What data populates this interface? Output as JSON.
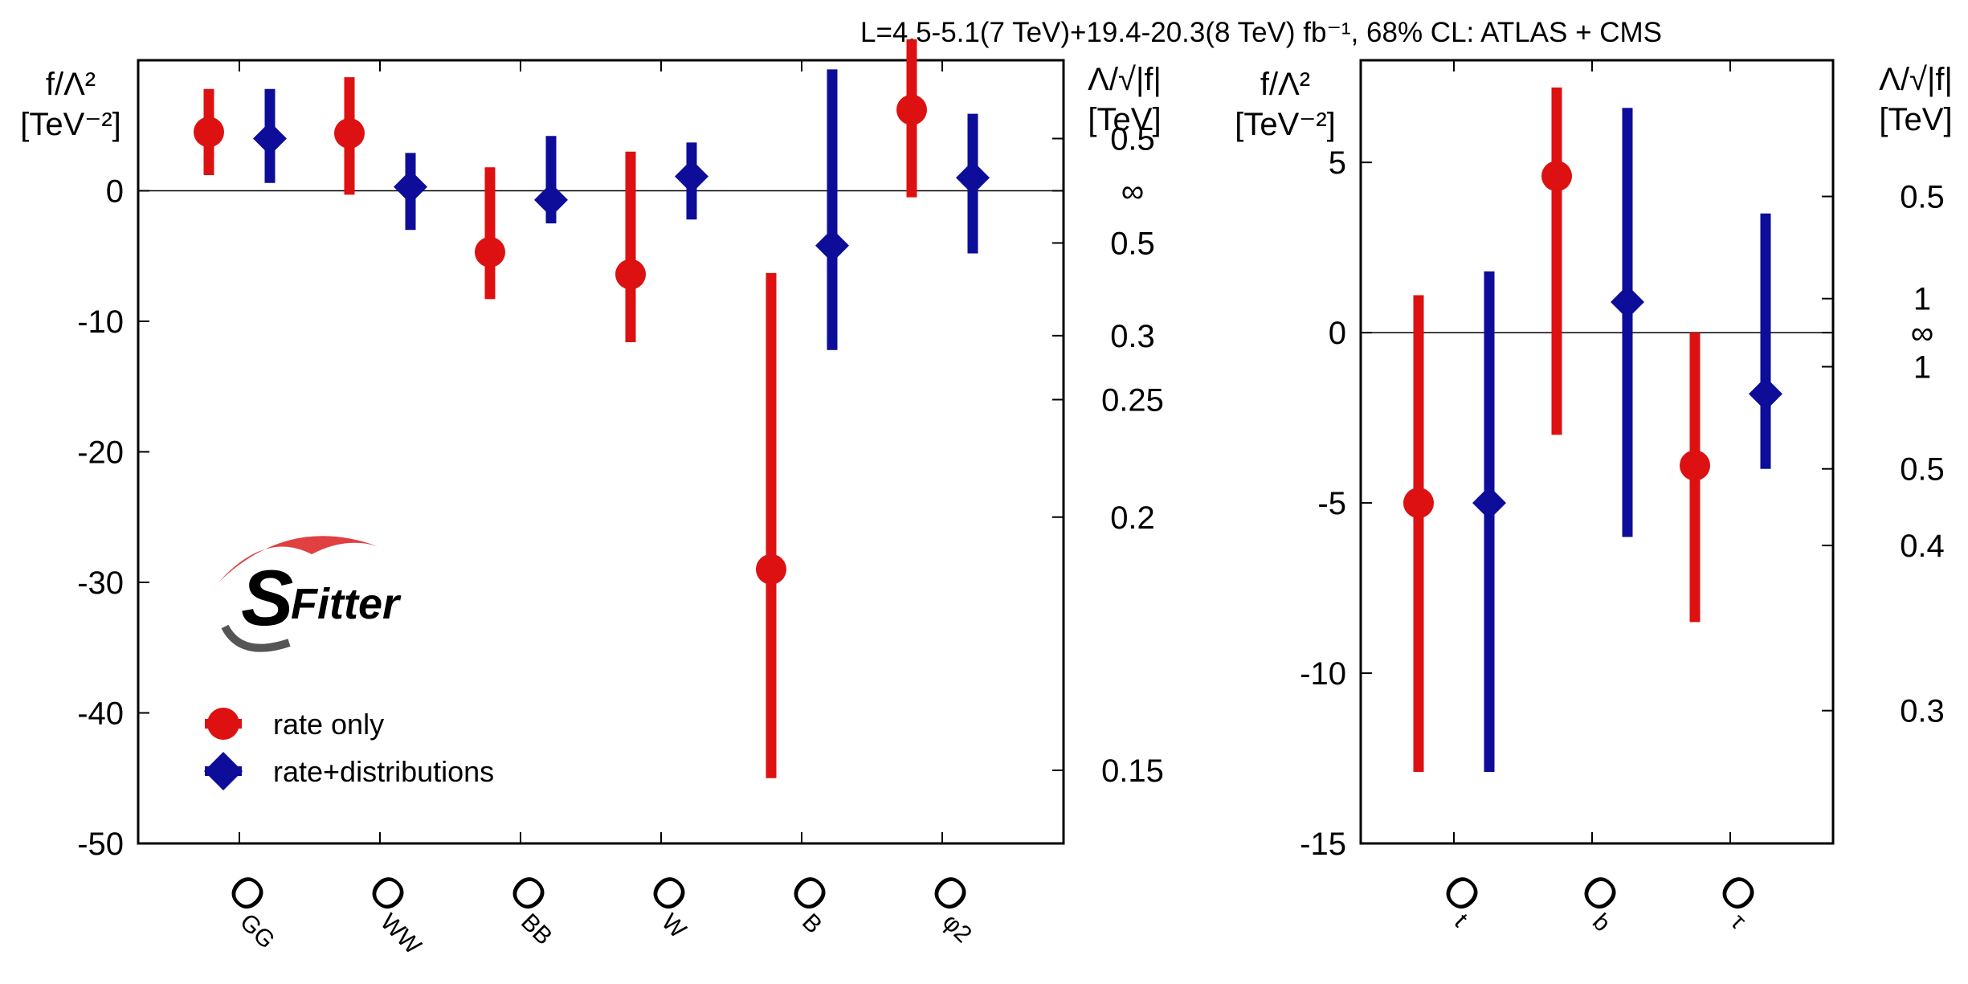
{
  "title": "L=4.5-5.1(7 TeV)+19.4-20.3(8 TeV) fb⁻¹, 68% CL: ATLAS + CMS",
  "colors": {
    "rate_only": "#dd1111",
    "rate_dist": "#0d0d9a",
    "logo_blue": "#6680f0",
    "logo_grey": "#555555",
    "logo_red": "#e04040"
  },
  "left_axis": {
    "line1": "f/Λ²",
    "line2": "[TeV⁻²]"
  },
  "right_axis": {
    "line1": "Λ/√|f|",
    "line2": "[TeV]"
  },
  "logo": {
    "s": "S",
    "rest": "Fitter"
  },
  "legend": [
    {
      "label": "rate only",
      "marker": "circle"
    },
    {
      "label": "rate+distributions",
      "marker": "diamond"
    }
  ],
  "chart_data": [
    {
      "type": "errorbar",
      "title": "L=4.5-5.1(7 TeV)+19.4-20.3(8 TeV) fb⁻¹, 68% CL: ATLAS + CMS",
      "ylabel": "f/Λ² [TeV⁻²]",
      "y2label": "Λ/√|f| [TeV]",
      "ylim": [
        -50,
        10
      ],
      "yticks": [
        0,
        -10,
        -20,
        -30,
        -40,
        -50
      ],
      "y2ticks": [
        {
          "f": 4.0,
          "label": "0.5"
        },
        {
          "f": 0,
          "label": "∞"
        },
        {
          "f": -4.0,
          "label": "0.5"
        },
        {
          "f": -11.1,
          "label": "0.3"
        },
        {
          "f": -16.0,
          "label": "0.25"
        },
        {
          "f": -25.0,
          "label": "0.2"
        },
        {
          "f": -44.4,
          "label": "0.15"
        }
      ],
      "categories": [
        {
          "op": "O",
          "sub": "GG"
        },
        {
          "op": "O",
          "sub": "WW"
        },
        {
          "op": "O",
          "sub": "BB"
        },
        {
          "op": "O",
          "sub": "W"
        },
        {
          "op": "O",
          "sub": "B"
        },
        {
          "op": "O",
          "sub": "φ2"
        }
      ],
      "series": [
        {
          "name": "rate only",
          "values": [
            4.5,
            4.4,
            -4.7,
            -6.4,
            -29.0,
            6.2
          ],
          "lo": [
            1.2,
            -0.3,
            -8.3,
            -11.6,
            -45.0,
            -0.5
          ],
          "hi": [
            7.8,
            8.7,
            1.8,
            3.0,
            -6.3,
            11.6
          ]
        },
        {
          "name": "rate+distributions",
          "values": [
            4.0,
            0.3,
            -0.7,
            1.1,
            -4.2,
            1.0
          ],
          "lo": [
            0.6,
            -3.0,
            -2.5,
            -2.2,
            -12.2,
            -4.8
          ],
          "hi": [
            7.8,
            2.9,
            4.2,
            3.7,
            9.3,
            5.9
          ]
        }
      ]
    },
    {
      "type": "errorbar",
      "ylabel": "f/Λ² [TeV⁻²]",
      "y2label": "Λ/√|f| [TeV]",
      "ylim": [
        -15,
        8
      ],
      "yticks": [
        5,
        0,
        -5,
        -10,
        -15
      ],
      "y2ticks": [
        {
          "f": 4.0,
          "label": "0.5"
        },
        {
          "f": 1.0,
          "label": "1"
        },
        {
          "f": 0,
          "label": "∞"
        },
        {
          "f": -1.0,
          "label": "1"
        },
        {
          "f": -4.0,
          "label": "0.5"
        },
        {
          "f": -6.25,
          "label": "0.4"
        },
        {
          "f": -11.1,
          "label": "0.3"
        }
      ],
      "categories": [
        {
          "op": "O",
          "sub": "t"
        },
        {
          "op": "O",
          "sub": "b"
        },
        {
          "op": "O",
          "sub": "τ"
        }
      ],
      "series": [
        {
          "name": "rate only",
          "values": [
            -5.0,
            4.6,
            -3.9
          ],
          "lo": [
            -12.9,
            -3.0,
            -8.5
          ],
          "hi": [
            1.1,
            7.2,
            0.0
          ]
        },
        {
          "name": "rate+distributions",
          "values": [
            -5.0,
            0.9,
            -1.8
          ],
          "lo": [
            -12.9,
            -6.0,
            -4.0
          ],
          "hi": [
            1.8,
            6.6,
            3.5
          ]
        }
      ]
    }
  ]
}
